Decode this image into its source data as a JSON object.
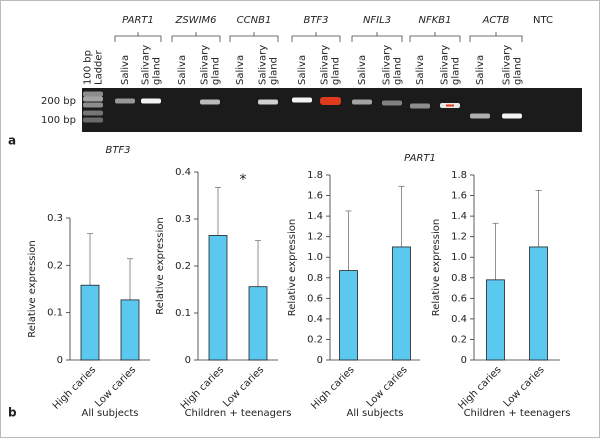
{
  "panel_a": {
    "label": "a",
    "gene_labels": [
      "PART1",
      "ZSWIM6",
      "CCNB1",
      "BTF3",
      "NFIL3",
      "NFKB1",
      "ACTB"
    ],
    "ntc_label": "NTC",
    "lane_labels": [
      [
        "100 bp",
        "Ladder"
      ],
      [
        "Saliva"
      ],
      [
        "Salivary",
        "gland"
      ],
      [
        "Saliva"
      ],
      [
        "Salivary",
        "gland"
      ],
      [
        "Saliva"
      ],
      [
        "Salivary",
        "gland"
      ],
      [
        "Saliva"
      ],
      [
        "Salivary",
        "gland"
      ],
      [
        "Saliva"
      ],
      [
        "Salivary",
        "gland"
      ],
      [
        "Saliva"
      ],
      [
        "Salivary",
        "gland"
      ],
      [
        "Saliva"
      ],
      [
        "Salivary",
        "gland"
      ]
    ],
    "size_labels": [
      "200 bp",
      "100 bp"
    ]
  },
  "panel_b": {
    "label": "b"
  },
  "chart_data": [
    {
      "type": "bar",
      "title": "BTF3",
      "xlabel": "All subjects",
      "ylabel": "Relative expression",
      "categories": [
        "High caries",
        "Low caries"
      ],
      "values": [
        0.158,
        0.127
      ],
      "errors": [
        0.109,
        0.087
      ],
      "color": "#5bc8f0",
      "ylim": [
        0,
        0.3
      ],
      "yticks": [
        0,
        0.1,
        0.2,
        0.3
      ]
    },
    {
      "type": "bar",
      "xlabel": "Children + teenagers",
      "ylabel": "Relative expression",
      "categories": [
        "High caries",
        "Low caries"
      ],
      "values": [
        0.265,
        0.156
      ],
      "errors": [
        0.102,
        0.098
      ],
      "color": "#5bc8f0",
      "ylim": [
        0,
        0.4
      ],
      "yticks": [
        0,
        0.1,
        0.2,
        0.3,
        0.4
      ],
      "annotation": "*"
    },
    {
      "type": "bar",
      "title": "PART1",
      "xlabel": "All subjects",
      "ylabel": "Relative expression",
      "categories": [
        "High caries",
        "Low caries"
      ],
      "values": [
        0.87,
        1.1
      ],
      "errors": [
        0.58,
        0.59
      ],
      "color": "#5bc8f0",
      "ylim": [
        0,
        1.8
      ],
      "yticks": [
        0,
        0.2,
        0.4,
        0.6,
        0.8,
        {
          "value": 1,
          "label": "1.0"
        },
        1.2,
        1.4,
        1.6,
        1.8
      ]
    },
    {
      "type": "bar",
      "xlabel": "Children + teenagers",
      "ylabel": "Relative expression",
      "categories": [
        "High caries",
        "Low caries"
      ],
      "values": [
        0.78,
        1.1
      ],
      "errors": [
        0.55,
        0.55
      ],
      "color": "#5bc8f0",
      "ylim": [
        0,
        1.8
      ],
      "yticks": [
        0,
        0.2,
        0.4,
        0.6,
        0.8,
        {
          "value": 1,
          "label": "1.0"
        },
        1.2,
        1.4,
        1.6,
        1.8
      ]
    }
  ]
}
